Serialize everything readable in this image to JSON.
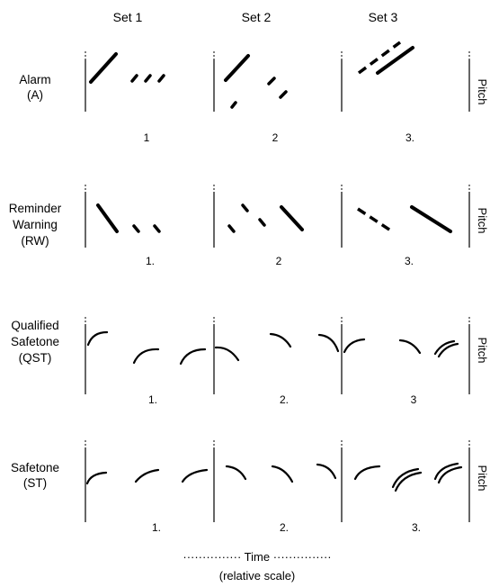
{
  "figure": {
    "columns": [
      {
        "label": "Set 1"
      },
      {
        "label": "Set 2"
      },
      {
        "label": "Set 3"
      }
    ],
    "rows": [
      {
        "label_lines": [
          "Alarm",
          "(A)"
        ],
        "numbers": [
          "1",
          "2",
          "3."
        ]
      },
      {
        "label_lines": [
          "Reminder",
          "Warning",
          "(RW)"
        ],
        "numbers": [
          "1.",
          "2",
          "3."
        ]
      },
      {
        "label_lines": [
          "Qualified",
          "Safetone",
          "(QST)"
        ],
        "numbers": [
          "1.",
          "2.",
          "3"
        ]
      },
      {
        "label_lines": [
          "Safetone",
          "(ST)"
        ],
        "numbers": [
          "1.",
          "2.",
          "3."
        ]
      }
    ],
    "pitch_label": "Pitch",
    "time_axis": {
      "line1": "··············· Time ···············",
      "line2": "(relative scale)"
    }
  }
}
